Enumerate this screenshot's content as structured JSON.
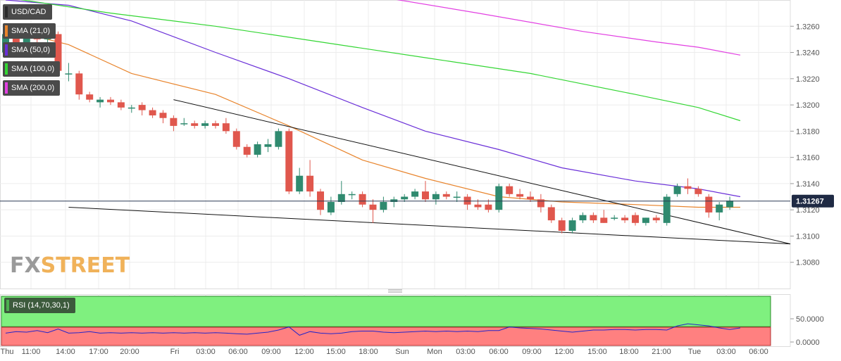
{
  "symbol": "USD/CAD",
  "watermark": {
    "part1": "FX",
    "part2": "STREET"
  },
  "legend": [
    {
      "label": "SMA (21,0)",
      "color": "#e8842c"
    },
    {
      "label": "SMA (50,0)",
      "color": "#6a2fd8"
    },
    {
      "label": "SMA (100,0)",
      "color": "#33d633"
    },
    {
      "label": "SMA (200,0)",
      "color": "#e23fe2"
    }
  ],
  "rsi": {
    "label": "RSI (14,70,30,1)",
    "levels": [
      "50.0000",
      "0.0000"
    ],
    "color": "#2424c8"
  },
  "last_price": "1.31267",
  "chart_data": {
    "type": "candlestick",
    "title": "USD/CAD",
    "ylim": [
      1.306,
      1.328
    ],
    "yticks": [
      "1.3260",
      "1.3240",
      "1.3220",
      "1.3200",
      "1.3180",
      "1.3160",
      "1.3140",
      "1.3120",
      "1.3100",
      "1.3080"
    ],
    "xticks": [
      "Thu",
      "11:00",
      "14:00",
      "17:00",
      "20:00",
      "Fri",
      "03:00",
      "06:00",
      "09:00",
      "12:00",
      "15:00",
      "18:00",
      "Sun",
      "Mon",
      "03:00",
      "06:00",
      "09:00",
      "12:00",
      "15:00",
      "18:00",
      "21:00",
      "Tue",
      "03:00",
      "06:00"
    ],
    "candles": [
      {
        "o": 1.324,
        "h": 1.3258,
        "l": 1.3236,
        "c": 1.3254
      },
      {
        "o": 1.3252,
        "h": 1.3258,
        "l": 1.3236,
        "c": 1.324
      },
      {
        "o": 1.324,
        "h": 1.3262,
        "l": 1.3238,
        "c": 1.3256
      },
      {
        "o": 1.3254,
        "h": 1.3262,
        "l": 1.3246,
        "c": 1.325
      },
      {
        "o": 1.325,
        "h": 1.3262,
        "l": 1.3244,
        "c": 1.3256
      },
      {
        "o": 1.3254,
        "h": 1.3256,
        "l": 1.3222,
        "c": 1.3226
      },
      {
        "o": 1.3224,
        "h": 1.3232,
        "l": 1.3218,
        "c": 1.3224
      },
      {
        "o": 1.3224,
        "h": 1.3226,
        "l": 1.3204,
        "c": 1.3208
      },
      {
        "o": 1.3208,
        "h": 1.321,
        "l": 1.3202,
        "c": 1.3204
      },
      {
        "o": 1.3202,
        "h": 1.3206,
        "l": 1.3198,
        "c": 1.3204
      },
      {
        "o": 1.3204,
        "h": 1.3206,
        "l": 1.32,
        "c": 1.3202
      },
      {
        "o": 1.3202,
        "h": 1.3204,
        "l": 1.3196,
        "c": 1.3198
      },
      {
        "o": 1.3198,
        "h": 1.32,
        "l": 1.3194,
        "c": 1.3198
      },
      {
        "o": 1.32,
        "h": 1.3202,
        "l": 1.3192,
        "c": 1.3196
      },
      {
        "o": 1.3196,
        "h": 1.3198,
        "l": 1.319,
        "c": 1.3192
      },
      {
        "o": 1.3194,
        "h": 1.3196,
        "l": 1.3186,
        "c": 1.319
      },
      {
        "o": 1.319,
        "h": 1.3192,
        "l": 1.318,
        "c": 1.3184
      },
      {
        "o": 1.3186,
        "h": 1.319,
        "l": 1.3184,
        "c": 1.3186
      },
      {
        "o": 1.3186,
        "h": 1.3188,
        "l": 1.3182,
        "c": 1.3184
      },
      {
        "o": 1.3184,
        "h": 1.3188,
        "l": 1.3182,
        "c": 1.3186
      },
      {
        "o": 1.3186,
        "h": 1.3188,
        "l": 1.3182,
        "c": 1.3184
      },
      {
        "o": 1.3186,
        "h": 1.319,
        "l": 1.3178,
        "c": 1.318
      },
      {
        "o": 1.318,
        "h": 1.3182,
        "l": 1.3166,
        "c": 1.3168
      },
      {
        "o": 1.3168,
        "h": 1.317,
        "l": 1.316,
        "c": 1.3162
      },
      {
        "o": 1.3162,
        "h": 1.3172,
        "l": 1.316,
        "c": 1.317
      },
      {
        "o": 1.3168,
        "h": 1.3174,
        "l": 1.3164,
        "c": 1.317
      },
      {
        "o": 1.3168,
        "h": 1.3182,
        "l": 1.3166,
        "c": 1.318
      },
      {
        "o": 1.318,
        "h": 1.3182,
        "l": 1.3132,
        "c": 1.3134
      },
      {
        "o": 1.3134,
        "h": 1.3152,
        "l": 1.3132,
        "c": 1.3146
      },
      {
        "o": 1.3146,
        "h": 1.3158,
        "l": 1.313,
        "c": 1.3134
      },
      {
        "o": 1.3134,
        "h": 1.3136,
        "l": 1.3116,
        "c": 1.312
      },
      {
        "o": 1.3118,
        "h": 1.313,
        "l": 1.3116,
        "c": 1.3126
      },
      {
        "o": 1.3126,
        "h": 1.3142,
        "l": 1.3124,
        "c": 1.3132
      },
      {
        "o": 1.3132,
        "h": 1.3134,
        "l": 1.3128,
        "c": 1.3132
      },
      {
        "o": 1.3132,
        "h": 1.3134,
        "l": 1.3122,
        "c": 1.3124
      },
      {
        "o": 1.3124,
        "h": 1.3128,
        "l": 1.311,
        "c": 1.312
      },
      {
        "o": 1.312,
        "h": 1.313,
        "l": 1.3118,
        "c": 1.3126
      },
      {
        "o": 1.3126,
        "h": 1.313,
        "l": 1.3122,
        "c": 1.3128
      },
      {
        "o": 1.3128,
        "h": 1.3132,
        "l": 1.3126,
        "c": 1.313
      },
      {
        "o": 1.313,
        "h": 1.3136,
        "l": 1.3128,
        "c": 1.3134
      },
      {
        "o": 1.3134,
        "h": 1.3142,
        "l": 1.3126,
        "c": 1.3128
      },
      {
        "o": 1.3128,
        "h": 1.3134,
        "l": 1.3124,
        "c": 1.3132
      },
      {
        "o": 1.3132,
        "h": 1.3134,
        "l": 1.3128,
        "c": 1.313
      },
      {
        "o": 1.313,
        "h": 1.3134,
        "l": 1.3126,
        "c": 1.313
      },
      {
        "o": 1.313,
        "h": 1.3132,
        "l": 1.312,
        "c": 1.3124
      },
      {
        "o": 1.3124,
        "h": 1.3128,
        "l": 1.312,
        "c": 1.3122
      },
      {
        "o": 1.3124,
        "h": 1.3128,
        "l": 1.3118,
        "c": 1.312
      },
      {
        "o": 1.312,
        "h": 1.314,
        "l": 1.3118,
        "c": 1.3138
      },
      {
        "o": 1.3138,
        "h": 1.314,
        "l": 1.313,
        "c": 1.3132
      },
      {
        "o": 1.3132,
        "h": 1.3136,
        "l": 1.3128,
        "c": 1.313
      },
      {
        "o": 1.313,
        "h": 1.3134,
        "l": 1.3126,
        "c": 1.3128
      },
      {
        "o": 1.3128,
        "h": 1.3132,
        "l": 1.3118,
        "c": 1.3122
      },
      {
        "o": 1.3122,
        "h": 1.3124,
        "l": 1.311,
        "c": 1.3112
      },
      {
        "o": 1.3112,
        "h": 1.3114,
        "l": 1.3102,
        "c": 1.3104
      },
      {
        "o": 1.3104,
        "h": 1.3114,
        "l": 1.3102,
        "c": 1.3112
      },
      {
        "o": 1.3112,
        "h": 1.3118,
        "l": 1.311,
        "c": 1.3116
      },
      {
        "o": 1.3116,
        "h": 1.3118,
        "l": 1.311,
        "c": 1.3112
      },
      {
        "o": 1.3114,
        "h": 1.312,
        "l": 1.311,
        "c": 1.311
      },
      {
        "o": 1.3114,
        "h": 1.3116,
        "l": 1.3112,
        "c": 1.3114
      },
      {
        "o": 1.3114,
        "h": 1.3116,
        "l": 1.311,
        "c": 1.3112
      },
      {
        "o": 1.3116,
        "h": 1.3118,
        "l": 1.3108,
        "c": 1.311
      },
      {
        "o": 1.311,
        "h": 1.3114,
        "l": 1.3108,
        "c": 1.3114
      },
      {
        "o": 1.3114,
        "h": 1.3116,
        "l": 1.311,
        "c": 1.3112
      },
      {
        "o": 1.311,
        "h": 1.3132,
        "l": 1.3108,
        "c": 1.313
      },
      {
        "o": 1.3132,
        "h": 1.314,
        "l": 1.313,
        "c": 1.3138
      },
      {
        "o": 1.3138,
        "h": 1.3144,
        "l": 1.3132,
        "c": 1.3136
      },
      {
        "o": 1.3136,
        "h": 1.3138,
        "l": 1.313,
        "c": 1.3132
      },
      {
        "o": 1.313,
        "h": 1.3132,
        "l": 1.3114,
        "c": 1.3118
      },
      {
        "o": 1.3118,
        "h": 1.3126,
        "l": 1.3112,
        "c": 1.3124
      },
      {
        "o": 1.3122,
        "h": 1.313,
        "l": 1.312,
        "c": 1.3127
      }
    ],
    "sma": [
      {
        "name": "SMA (21,0)",
        "color": "#e8842c",
        "points": [
          [
            0,
            1.3258
          ],
          [
            6,
            1.3246
          ],
          [
            12,
            1.3224
          ],
          [
            20,
            1.3208
          ],
          [
            27,
            1.3184
          ],
          [
            34,
            1.3158
          ],
          [
            40,
            1.3144
          ],
          [
            47,
            1.313
          ],
          [
            53,
            1.3126
          ],
          [
            60,
            1.3124
          ],
          [
            66,
            1.3122
          ],
          [
            70,
            1.3122
          ]
        ]
      },
      {
        "name": "SMA (50,0)",
        "color": "#6a2fd8",
        "points": [
          [
            0,
            1.328
          ],
          [
            6,
            1.3276
          ],
          [
            12,
            1.3264
          ],
          [
            20,
            1.324
          ],
          [
            27,
            1.322
          ],
          [
            34,
            1.3198
          ],
          [
            40,
            1.318
          ],
          [
            47,
            1.3166
          ],
          [
            53,
            1.3152
          ],
          [
            60,
            1.3142
          ],
          [
            66,
            1.3136
          ],
          [
            70,
            1.313
          ]
        ]
      },
      {
        "name": "SMA (100,0)",
        "color": "#33d633",
        "points": [
          [
            0,
            1.3282
          ],
          [
            10,
            1.327
          ],
          [
            20,
            1.326
          ],
          [
            30,
            1.3248
          ],
          [
            40,
            1.3236
          ],
          [
            50,
            1.3224
          ],
          [
            60,
            1.3208
          ],
          [
            66,
            1.3198
          ],
          [
            70,
            1.3188
          ]
        ]
      },
      {
        "name": "SMA (200,0)",
        "color": "#e23fe2",
        "points": [
          [
            36,
            1.3282
          ],
          [
            45,
            1.327
          ],
          [
            55,
            1.3256
          ],
          [
            62,
            1.3248
          ],
          [
            66,
            1.3244
          ],
          [
            70,
            1.3238
          ]
        ]
      }
    ],
    "trendlines": [
      {
        "from": [
          16,
          1.3204
        ],
        "to": [
          76,
          1.3094
        ]
      },
      {
        "from": [
          6,
          1.3122
        ],
        "to": [
          76,
          1.3094
        ]
      }
    ],
    "rsi_values": [
      44,
      47,
      46,
      49,
      45,
      52,
      44,
      45,
      47,
      44,
      45,
      44,
      45,
      44,
      45,
      44,
      45,
      44,
      45,
      44,
      45,
      44,
      43,
      42,
      44,
      46,
      50,
      56,
      40,
      47,
      44,
      43,
      44,
      47,
      48,
      48,
      46,
      45,
      46,
      47,
      48,
      47,
      48,
      47,
      48,
      47,
      49,
      49,
      56,
      54,
      53,
      52,
      50,
      48,
      46,
      48,
      50,
      50,
      51,
      51,
      50,
      51,
      51,
      50,
      58,
      62,
      60,
      58,
      54,
      51,
      54
    ]
  }
}
